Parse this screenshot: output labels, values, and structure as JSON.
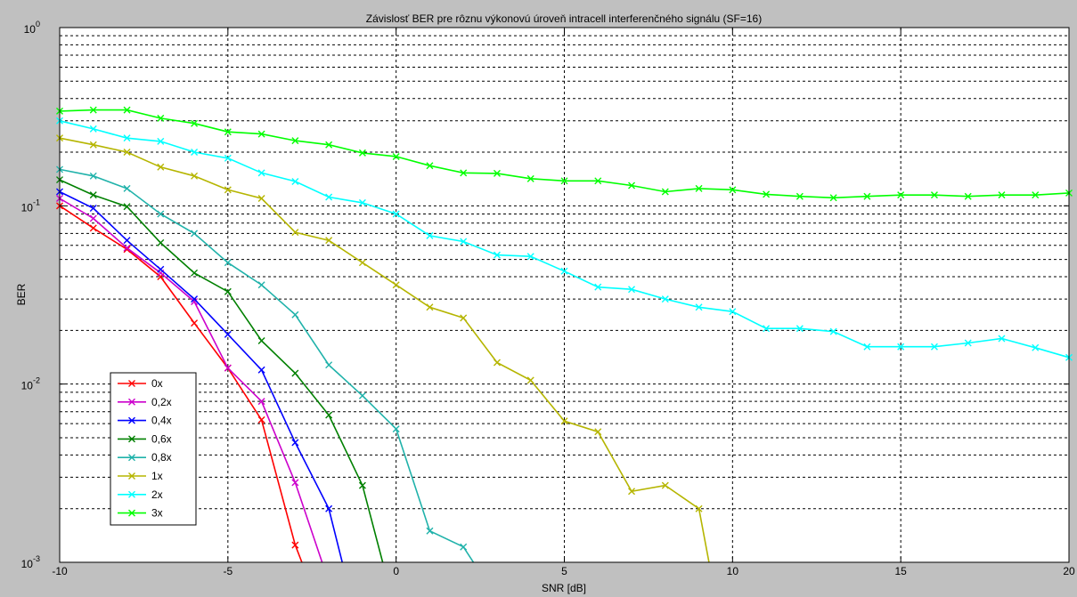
{
  "chart_data": {
    "type": "line",
    "title": "Závislosť BER pre rôznu výkonovú úroveň intracell interferenčného signálu (SF=16)",
    "xlabel": "SNR [dB]",
    "ylabel": "BER",
    "xlim": [
      -10,
      20
    ],
    "ylim": [
      0.001,
      1
    ],
    "yscale": "log",
    "grid": true,
    "legend_position": "bottom-left",
    "x_ticks": [
      -10,
      -5,
      0,
      5,
      10,
      15,
      20
    ],
    "x_tick_labels": [
      "-10",
      "-5",
      "0",
      "5",
      "10",
      "15",
      "20"
    ],
    "y_ticks": [
      0.001,
      0.01,
      0.1,
      1
    ],
    "y_tick_bases": [
      "10",
      "10",
      "10",
      "10"
    ],
    "y_tick_exponents": [
      "-3",
      "-2",
      "-1",
      "0"
    ],
    "series": [
      {
        "name": "0x",
        "color": "#ff0000",
        "x": [
          -10,
          -9,
          -8,
          -7,
          -6,
          -5,
          -4,
          -3,
          -2.8
        ],
        "y": [
          0.1,
          0.075,
          0.057,
          0.04,
          0.022,
          0.0123,
          0.0063,
          0.00125,
          0.001
        ]
      },
      {
        "name": "0,2x",
        "color": "#cc00cc",
        "x": [
          -10,
          -9,
          -8,
          -7,
          -6,
          -5,
          -4,
          -3,
          -2.2
        ],
        "y": [
          0.11,
          0.085,
          0.058,
          0.042,
          0.029,
          0.0123,
          0.008,
          0.0028,
          0.001
        ]
      },
      {
        "name": "0,4x",
        "color": "#0000ff",
        "x": [
          -10,
          -9,
          -8,
          -7,
          -6,
          -5,
          -4,
          -3,
          -2,
          -1.6
        ],
        "y": [
          0.12,
          0.097,
          0.064,
          0.044,
          0.03,
          0.019,
          0.012,
          0.0047,
          0.002,
          0.001
        ]
      },
      {
        "name": "0,6x",
        "color": "#008000",
        "x": [
          -10,
          -9,
          -8,
          -7,
          -6,
          -5,
          -4,
          -3,
          -2,
          -1,
          -0.4
        ],
        "y": [
          0.14,
          0.115,
          0.099,
          0.062,
          0.042,
          0.033,
          0.0175,
          0.0115,
          0.0067,
          0.0027,
          0.001
        ]
      },
      {
        "name": "0,8x",
        "color": "#20b2aa",
        "x": [
          -10,
          -9,
          -8,
          -7,
          -6,
          -5,
          -4,
          -3,
          -2,
          -1,
          0,
          1,
          2,
          2.3
        ],
        "y": [
          0.16,
          0.147,
          0.125,
          0.09,
          0.07,
          0.048,
          0.036,
          0.0245,
          0.0128,
          0.0086,
          0.0056,
          0.0015,
          0.00122,
          0.001
        ]
      },
      {
        "name": "1x",
        "color": "#b5b500",
        "x": [
          -10,
          -9,
          -8,
          -7,
          -6,
          -5,
          -4,
          -3,
          -2,
          -1,
          0,
          1,
          2,
          3,
          4,
          5,
          6,
          7,
          8,
          9,
          9.3
        ],
        "y": [
          0.24,
          0.22,
          0.2,
          0.165,
          0.147,
          0.123,
          0.11,
          0.071,
          0.064,
          0.048,
          0.036,
          0.027,
          0.0235,
          0.0132,
          0.0105,
          0.0062,
          0.0054,
          0.0025,
          0.0027,
          0.002,
          0.001
        ]
      },
      {
        "name": "2x",
        "color": "#00ffff",
        "x": [
          -10,
          -9,
          -8,
          -7,
          -6,
          -5,
          -4,
          -3,
          -2,
          -1,
          0,
          1,
          2,
          3,
          4,
          5,
          6,
          7,
          8,
          9,
          10,
          11,
          12,
          13,
          14,
          15,
          16,
          17,
          18,
          19,
          20
        ],
        "y": [
          0.3,
          0.27,
          0.24,
          0.23,
          0.2,
          0.185,
          0.153,
          0.137,
          0.112,
          0.104,
          0.09,
          0.068,
          0.063,
          0.053,
          0.052,
          0.043,
          0.035,
          0.034,
          0.03,
          0.027,
          0.0255,
          0.0205,
          0.0205,
          0.0197,
          0.0162,
          0.0162,
          0.0162,
          0.017,
          0.018,
          0.016,
          0.0141
        ]
      },
      {
        "name": "3x",
        "color": "#00ff00",
        "x": [
          -10,
          -9,
          -8,
          -7,
          -6,
          -5,
          -4,
          -3,
          -2,
          -1,
          0,
          1,
          2,
          3,
          4,
          5,
          6,
          7,
          8,
          9,
          10,
          11,
          12,
          13,
          14,
          15,
          16,
          17,
          18,
          19,
          20
        ],
        "y": [
          0.34,
          0.345,
          0.345,
          0.31,
          0.29,
          0.26,
          0.253,
          0.232,
          0.22,
          0.198,
          0.189,
          0.168,
          0.153,
          0.152,
          0.142,
          0.138,
          0.138,
          0.13,
          0.12,
          0.125,
          0.123,
          0.116,
          0.113,
          0.111,
          0.113,
          0.115,
          0.115,
          0.113,
          0.115,
          0.115,
          0.118
        ]
      }
    ]
  }
}
